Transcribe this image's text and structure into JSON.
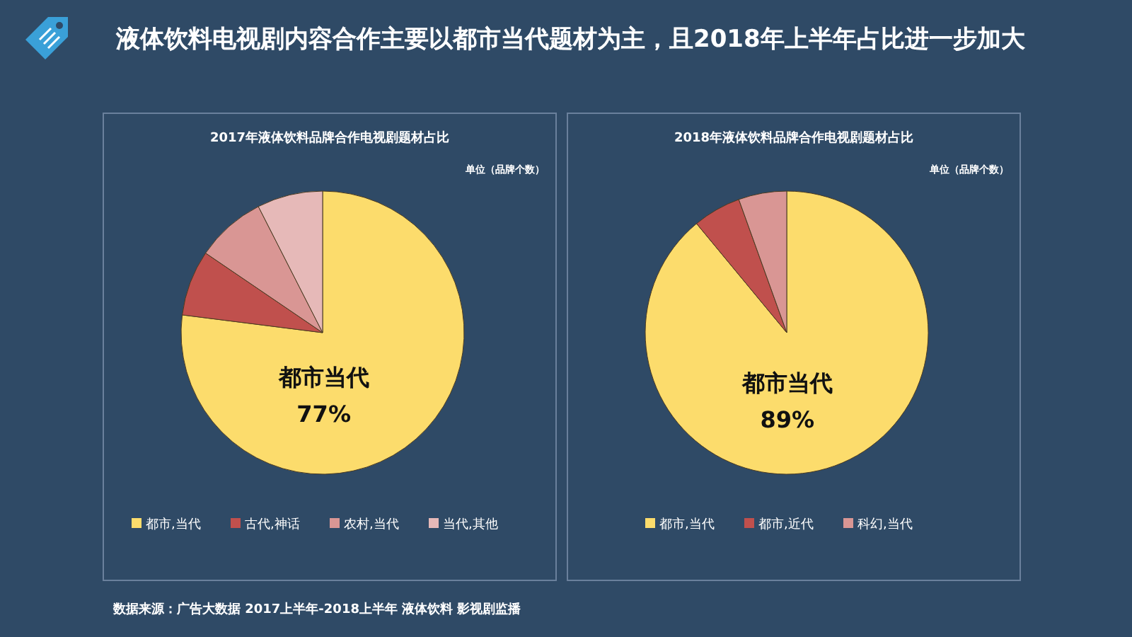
{
  "chart_data": [
    {
      "type": "other",
      "title": "液体饮料电视剧内容合作主要以都市当代题材为主，且2018年上半年占比进一步加大",
      "annotations": [
        "数据来源：广告大数据 2017上半年-2018上半年 液体饮料 影视剧监播"
      ]
    },
    {
      "type": "pie",
      "title": "2017年液体饮料品牌合作电视剧题材占比",
      "annotations": [
        "单位（品牌个数）"
      ],
      "categories": [
        "都市,当代",
        "古代,神话",
        "农村,当代",
        "当代,其他"
      ],
      "values": [
        77,
        7.5,
        8,
        7.5
      ],
      "colors": [
        "#fcdc6c",
        "#c0504d",
        "#d99694",
        "#e6b9b8"
      ],
      "value_labels": [
        "都市当代\n77%",
        null,
        null,
        null
      ],
      "legend": "bottom"
    },
    {
      "type": "pie",
      "title": "2018年液体饮料品牌合作电视剧题材占比",
      "annotations": [
        "单位（品牌个数）"
      ],
      "categories": [
        "都市,当代",
        "都市,近代",
        "科幻,当代"
      ],
      "values": [
        89,
        5.5,
        5.5
      ],
      "colors": [
        "#fcdc6c",
        "#c0504d",
        "#d99694"
      ],
      "value_labels": [
        "都市当代\n89%",
        null,
        null
      ],
      "legend": "bottom"
    }
  ]
}
